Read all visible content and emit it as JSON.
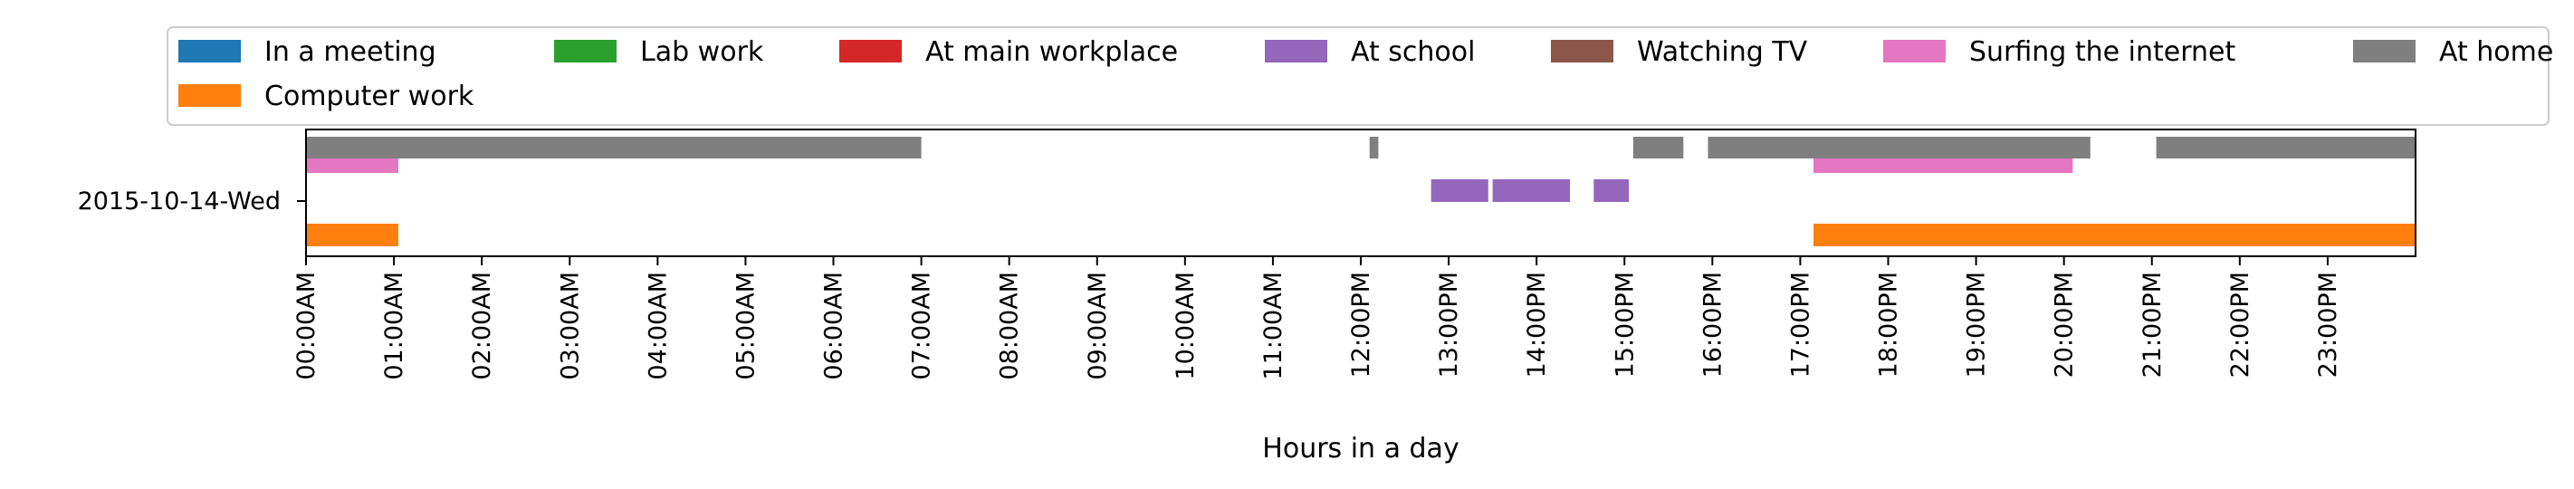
{
  "chart_data": {
    "type": "timeline",
    "title": "",
    "xlabel": "Hours in a day",
    "ylabel": "",
    "xlim_hours": [
      0,
      24
    ],
    "row_label": "2015-10-14-Wed",
    "x_ticks": [
      "00:00AM",
      "01:00AM",
      "02:00AM",
      "03:00AM",
      "04:00AM",
      "05:00AM",
      "06:00AM",
      "07:00AM",
      "08:00AM",
      "09:00AM",
      "10:00AM",
      "11:00AM",
      "12:00PM",
      "13:00PM",
      "14:00PM",
      "15:00PM",
      "16:00PM",
      "17:00PM",
      "18:00PM",
      "19:00PM",
      "20:00PM",
      "21:00PM",
      "22:00PM",
      "23:00PM"
    ],
    "legend_position": "top",
    "legend": [
      {
        "name": "In a meeting",
        "color": "#1f77b4"
      },
      {
        "name": "Lab work",
        "color": "#2ca02c"
      },
      {
        "name": "At main workplace",
        "color": "#d62728"
      },
      {
        "name": "At school",
        "color": "#9467bd"
      },
      {
        "name": "Watching TV",
        "color": "#8c564b"
      },
      {
        "name": "Surfing the internet",
        "color": "#e377c2"
      },
      {
        "name": "At home",
        "color": "#7f7f7f"
      },
      {
        "name": "Computer work",
        "color": "#ff7f0e"
      }
    ],
    "series": [
      {
        "name": "At home",
        "color": "#7f7f7f",
        "intervals": [
          [
            0,
            7.0
          ],
          [
            12.1,
            12.2
          ],
          [
            15.1,
            15.67
          ],
          [
            15.95,
            20.3
          ],
          [
            21.05,
            24.0
          ]
        ]
      },
      {
        "name": "Surfing the internet",
        "color": "#e377c2",
        "intervals": [
          [
            0,
            1.05
          ],
          [
            17.15,
            20.1
          ]
        ]
      },
      {
        "name": "At school",
        "color": "#9467bd",
        "intervals": [
          [
            12.8,
            13.45
          ],
          [
            13.5,
            14.38
          ],
          [
            14.65,
            15.05
          ]
        ]
      },
      {
        "name": "Computer work",
        "color": "#ff7f0e",
        "intervals": [
          [
            0,
            1.05
          ],
          [
            17.15,
            24.0
          ]
        ]
      }
    ]
  }
}
